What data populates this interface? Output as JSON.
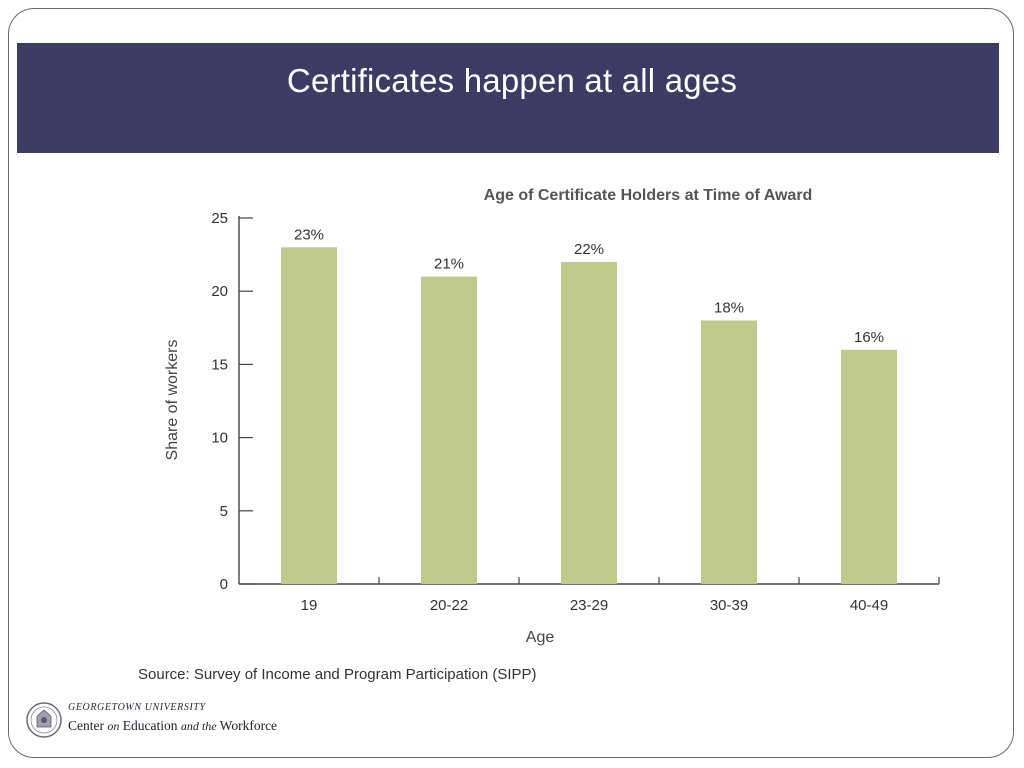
{
  "slide": {
    "title": "Certificates happen at all ages"
  },
  "chart_data": {
    "type": "bar",
    "title": "Age of Certificate Holders at Time of Award",
    "categories": [
      "19",
      "20-22",
      "23-29",
      "30-39",
      "40-49"
    ],
    "values": [
      23,
      21,
      22,
      18,
      16
    ],
    "data_labels": [
      "23%",
      "21%",
      "22%",
      "18%",
      "16%"
    ],
    "xlabel": "Age",
    "ylabel": "Share of workers",
    "ylim": [
      0,
      25
    ],
    "yticks": [
      0,
      5,
      10,
      15,
      20,
      25
    ],
    "grid": false,
    "bar_color": "#bfc98a"
  },
  "source": "Source: Survey of Income and Program Participation (SIPP)",
  "logo": {
    "university": "GEORGETOWN UNIVERSITY",
    "center_part1": "Center",
    "center_part2": "on",
    "center_part3": "Education",
    "center_part4": "and the",
    "center_part5": "Workforce"
  },
  "colors": {
    "title_bar": "#3d3b64",
    "bar": "#bfc98a"
  }
}
